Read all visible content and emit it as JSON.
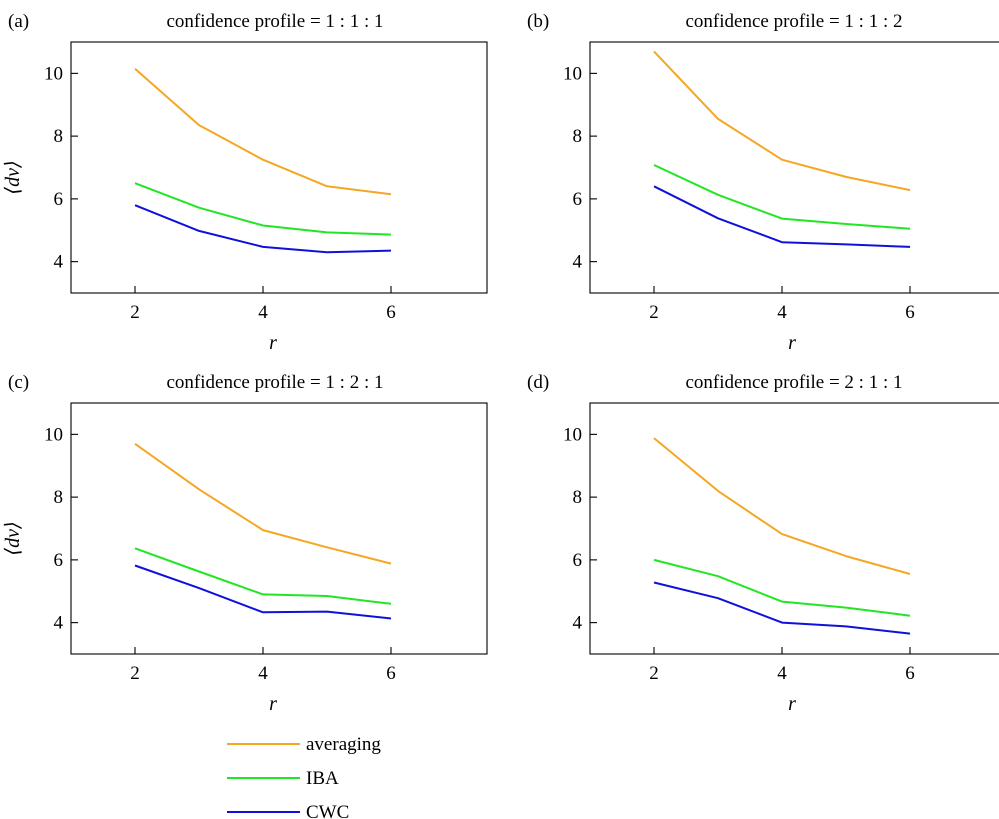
{
  "chart_data": [
    {
      "type": "line",
      "panel_label": "(a)",
      "title": "confidence profile = 1 : 1 : 1",
      "xlabel": "r",
      "ylabel": "⟨dν⟩",
      "x": [
        2,
        3,
        4,
        5,
        6
      ],
      "xlim": [
        1,
        7.5
      ],
      "ylim": [
        3,
        11
      ],
      "xticks": [
        2,
        4,
        6
      ],
      "yticks": [
        4,
        6,
        8,
        10
      ],
      "series": [
        {
          "name": "averaging",
          "color": "#f5a623",
          "values": [
            10.15,
            8.35,
            7.25,
            6.4,
            6.15
          ]
        },
        {
          "name": "IBA",
          "color": "#22e622",
          "values": [
            6.5,
            5.72,
            5.15,
            4.93,
            4.86
          ]
        },
        {
          "name": "CWC",
          "color": "#1010dd",
          "values": [
            5.8,
            4.98,
            4.47,
            4.3,
            4.35
          ]
        }
      ]
    },
    {
      "type": "line",
      "panel_label": "(b)",
      "title": "confidence profile = 1 : 1 : 2",
      "xlabel": "r",
      "ylabel": "",
      "x": [
        2,
        3,
        4,
        5,
        6
      ],
      "xlim": [
        1,
        7.5
      ],
      "ylim": [
        3,
        11
      ],
      "xticks": [
        2,
        4,
        6
      ],
      "yticks": [
        4,
        6,
        8,
        10
      ],
      "series": [
        {
          "name": "averaging",
          "color": "#f5a623",
          "values": [
            10.7,
            8.55,
            7.25,
            6.7,
            6.28
          ]
        },
        {
          "name": "IBA",
          "color": "#22e622",
          "values": [
            7.08,
            6.13,
            5.37,
            5.2,
            5.05
          ]
        },
        {
          "name": "CWC",
          "color": "#1010dd",
          "values": [
            6.4,
            5.38,
            4.62,
            4.55,
            4.47
          ]
        }
      ]
    },
    {
      "type": "line",
      "panel_label": "(c)",
      "title": "confidence profile = 1 : 2 : 1",
      "xlabel": "r",
      "ylabel": "⟨dν⟩",
      "x": [
        2,
        3,
        4,
        5,
        6
      ],
      "xlim": [
        1,
        7.5
      ],
      "ylim": [
        3,
        11
      ],
      "xticks": [
        2,
        4,
        6
      ],
      "yticks": [
        4,
        6,
        8,
        10
      ],
      "series": [
        {
          "name": "averaging",
          "color": "#f5a623",
          "values": [
            9.7,
            8.25,
            6.95,
            6.4,
            5.88
          ]
        },
        {
          "name": "IBA",
          "color": "#22e622",
          "values": [
            6.37,
            5.63,
            4.9,
            4.85,
            4.6
          ]
        },
        {
          "name": "CWC",
          "color": "#1010dd",
          "values": [
            5.82,
            5.1,
            4.33,
            4.35,
            4.13
          ]
        }
      ]
    },
    {
      "type": "line",
      "panel_label": "(d)",
      "title": "confidence profile = 2 : 1 : 1",
      "xlabel": "r",
      "ylabel": "",
      "x": [
        2,
        3,
        4,
        5,
        6
      ],
      "xlim": [
        1,
        7.5
      ],
      "ylim": [
        3,
        11
      ],
      "xticks": [
        2,
        4,
        6
      ],
      "yticks": [
        4,
        6,
        8,
        10
      ],
      "series": [
        {
          "name": "averaging",
          "color": "#f5a623",
          "values": [
            9.88,
            8.2,
            6.82,
            6.12,
            5.55
          ]
        },
        {
          "name": "IBA",
          "color": "#22e622",
          "values": [
            6.0,
            5.48,
            4.67,
            4.48,
            4.22
          ]
        },
        {
          "name": "CWC",
          "color": "#1010dd",
          "values": [
            5.28,
            4.78,
            4.0,
            3.88,
            3.65
          ]
        }
      ]
    }
  ],
  "legend": {
    "placement": "bottom-center",
    "entries": [
      {
        "label": "averaging",
        "color": "#f5a623"
      },
      {
        "label": "IBA",
        "color": "#22e622"
      },
      {
        "label": "CWC",
        "color": "#1010dd"
      }
    ]
  }
}
